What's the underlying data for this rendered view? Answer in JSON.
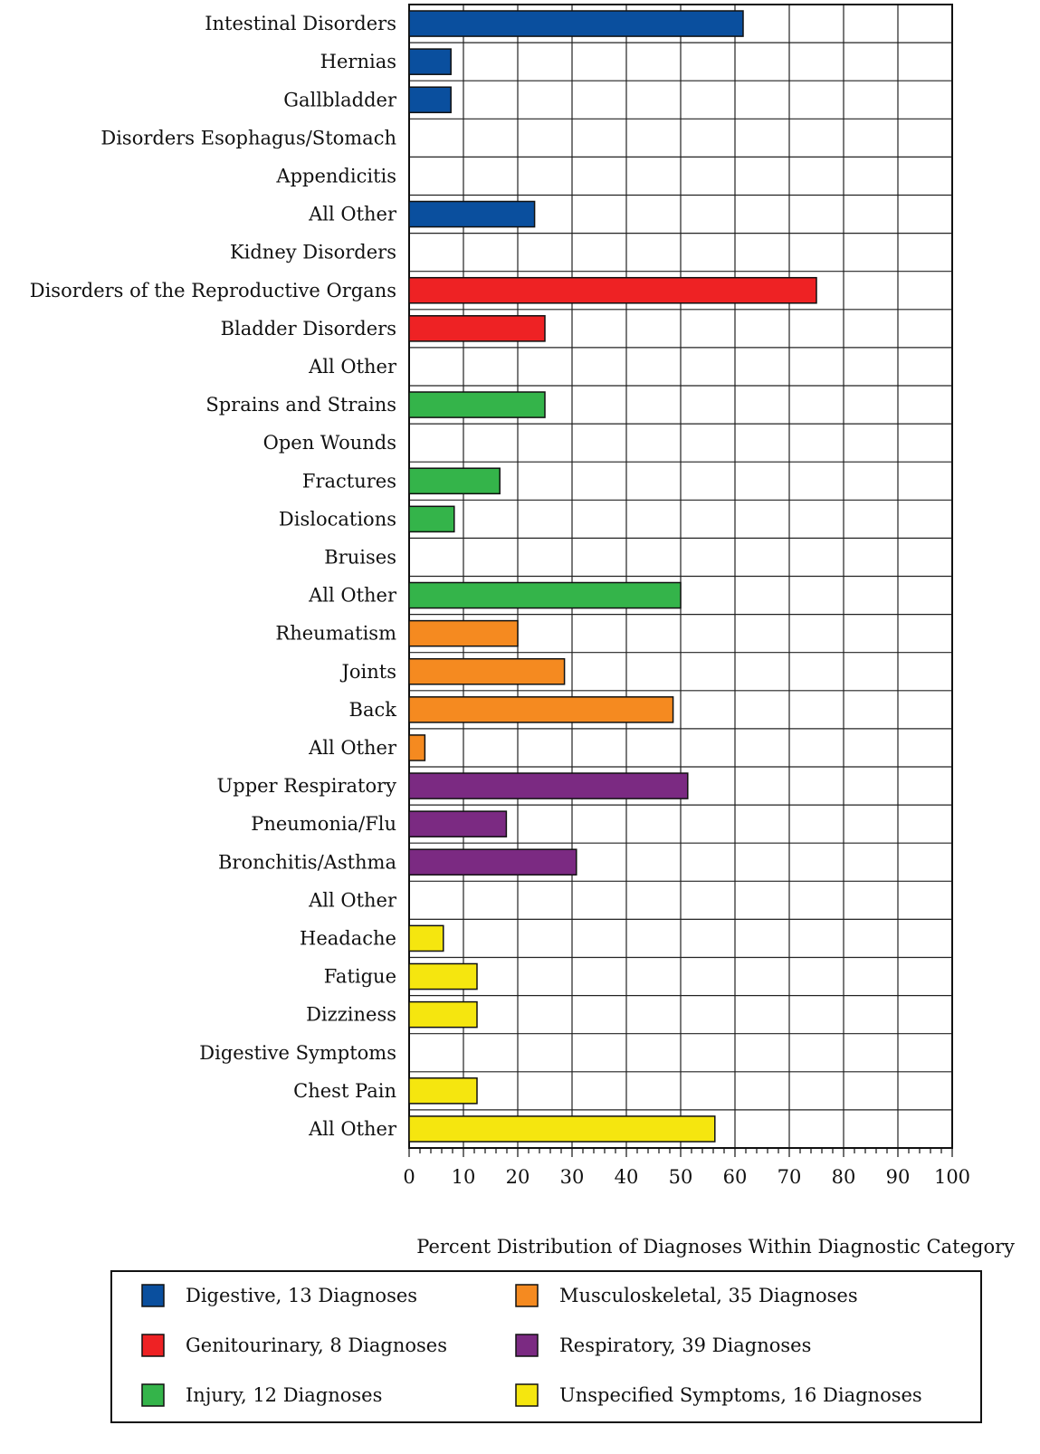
{
  "chart_data": {
    "type": "bar",
    "orientation": "horizontal",
    "xlabel": "Percent Distribution of Diagnoses Within Diagnostic Category",
    "ylabel": "",
    "xlim": [
      0,
      100
    ],
    "xticks": [
      "0",
      "10",
      "20",
      "30",
      "40",
      "50",
      "60",
      "70",
      "80",
      "90",
      "100"
    ],
    "grid": true,
    "legend_position": "bottom",
    "groups": [
      {
        "name": "Digestive, 13 Diagnoses",
        "color": "#0a4f9e"
      },
      {
        "name": "Genitourinary, 8 Diagnoses",
        "color": "#ee2224"
      },
      {
        "name": "Injury, 12 Diagnoses",
        "color": "#34b44a"
      },
      {
        "name": "Musculoskeletal, 35 Diagnoses",
        "color": "#f58a20"
      },
      {
        "name": "Respiratory, 39 Diagnoses",
        "color": "#7b2a82"
      },
      {
        "name": "Unspecified Symptoms, 16 Diagnoses",
        "color": "#f5e60f"
      }
    ],
    "categories": [
      {
        "label": "Intestinal Disorders",
        "value": 61.5,
        "group": 0
      },
      {
        "label": "Hernias",
        "value": 7.7,
        "group": 0
      },
      {
        "label": "Gallbladder",
        "value": 7.7,
        "group": 0
      },
      {
        "label": "Disorders Esophagus/Stomach",
        "value": 0,
        "group": 0
      },
      {
        "label": "Appendicitis",
        "value": 0,
        "group": 0
      },
      {
        "label": "All Other",
        "value": 23.1,
        "group": 0
      },
      {
        "label": "Kidney Disorders",
        "value": 0,
        "group": 1
      },
      {
        "label": "Disorders of the Reproductive Organs",
        "value": 75,
        "group": 1
      },
      {
        "label": "Bladder Disorders",
        "value": 25,
        "group": 1
      },
      {
        "label": "All Other",
        "value": 0,
        "group": 1
      },
      {
        "label": "Sprains and Strains",
        "value": 25,
        "group": 2
      },
      {
        "label": "Open Wounds",
        "value": 0,
        "group": 2
      },
      {
        "label": "Fractures",
        "value": 16.7,
        "group": 2
      },
      {
        "label": "Dislocations",
        "value": 8.3,
        "group": 2
      },
      {
        "label": "Bruises",
        "value": 0,
        "group": 2
      },
      {
        "label": "All Other",
        "value": 50,
        "group": 2
      },
      {
        "label": "Rheumatism",
        "value": 20,
        "group": 3
      },
      {
        "label": "Joints",
        "value": 28.6,
        "group": 3
      },
      {
        "label": "Back",
        "value": 48.6,
        "group": 3
      },
      {
        "label": "All Other",
        "value": 2.9,
        "group": 3
      },
      {
        "label": "Upper Respiratory",
        "value": 51.3,
        "group": 4
      },
      {
        "label": "Pneumonia/Flu",
        "value": 17.9,
        "group": 4
      },
      {
        "label": "Bronchitis/Asthma",
        "value": 30.8,
        "group": 4
      },
      {
        "label": "All Other",
        "value": 0,
        "group": 4
      },
      {
        "label": "Headache",
        "value": 6.3,
        "group": 5
      },
      {
        "label": "Fatigue",
        "value": 12.5,
        "group": 5
      },
      {
        "label": "Dizziness",
        "value": 12.5,
        "group": 5
      },
      {
        "label": "Digestive Symptoms",
        "value": 0,
        "group": 5
      },
      {
        "label": "Chest Pain",
        "value": 12.5,
        "group": 5
      },
      {
        "label": "All Other",
        "value": 56.3,
        "group": 5
      }
    ]
  }
}
